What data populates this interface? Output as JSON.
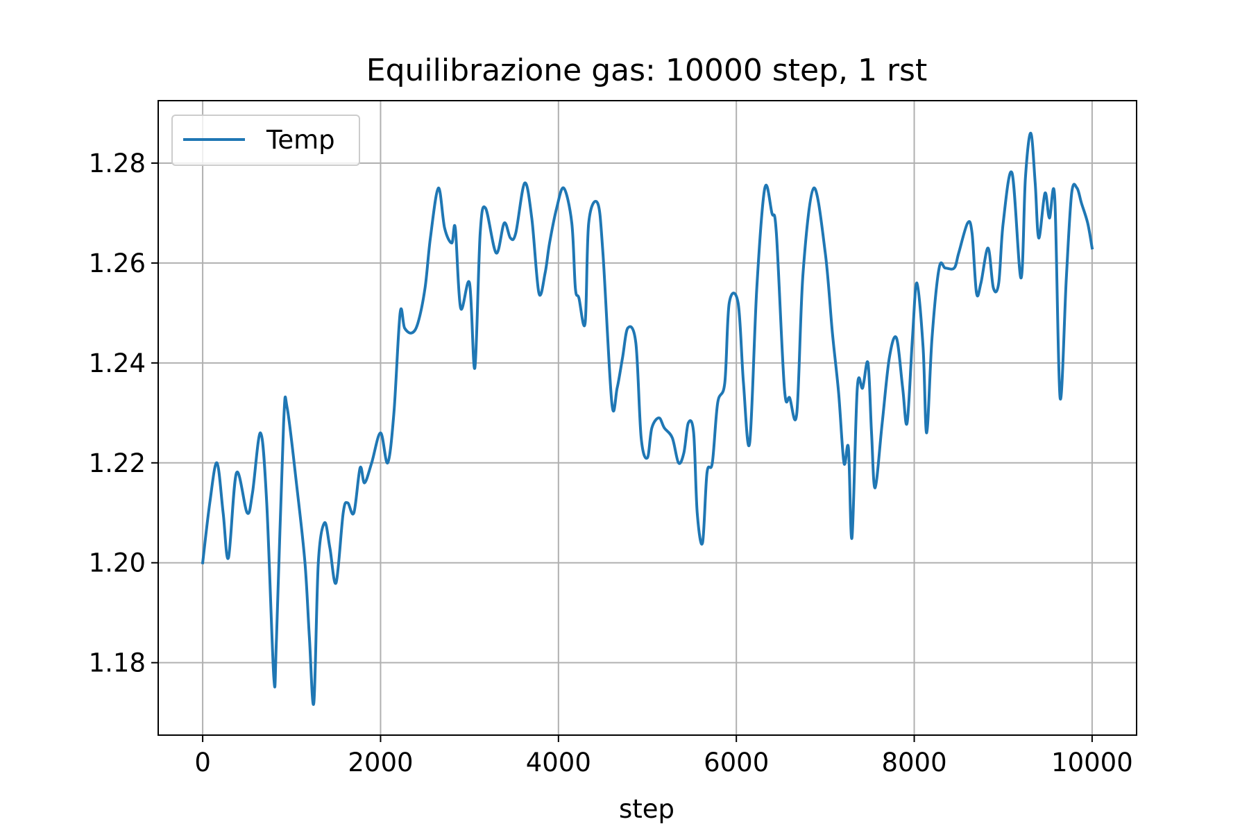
{
  "chart_data": {
    "type": "line",
    "title": "Equilibrazione gas: 10000 step, 1 rst",
    "xlabel": "step",
    "ylabel": "",
    "xlim": [
      -500,
      10500
    ],
    "ylim": [
      1.1655,
      1.2925
    ],
    "xticks": [
      0,
      2000,
      4000,
      6000,
      8000,
      10000
    ],
    "xtick_labels": [
      "0",
      "2000",
      "4000",
      "6000",
      "8000",
      "10000"
    ],
    "yticks": [
      1.18,
      1.2,
      1.22,
      1.24,
      1.26,
      1.28
    ],
    "ytick_labels": [
      "1.18",
      "1.20",
      "1.22",
      "1.24",
      "1.26",
      "1.28"
    ],
    "grid": true,
    "legend": {
      "position": "upper-left",
      "entries": [
        "Temp"
      ]
    },
    "colors": {
      "series": "#1f77b4",
      "grid": "#b0b0b0"
    },
    "series": [
      {
        "name": "Temp",
        "x": [
          0,
          80,
          160,
          230,
          290,
          380,
          500,
          560,
          650,
          720,
          800,
          830,
          910,
          950,
          1060,
          1150,
          1200,
          1250,
          1300,
          1370,
          1430,
          1500,
          1580,
          1630,
          1700,
          1770,
          1820,
          1900,
          2000,
          2080,
          2150,
          2220,
          2270,
          2350,
          2420,
          2500,
          2560,
          2650,
          2720,
          2800,
          2840,
          2900,
          3000,
          3060,
          3120,
          3180,
          3300,
          3390,
          3460,
          3520,
          3620,
          3700,
          3780,
          3850,
          3900,
          3980,
          4060,
          4150,
          4190,
          4230,
          4300,
          4340,
          4440,
          4500,
          4600,
          4660,
          4720,
          4780,
          4870,
          4930,
          5000,
          5050,
          5130,
          5190,
          5280,
          5350,
          5410,
          5460,
          5520,
          5560,
          5620,
          5670,
          5730,
          5790,
          5870,
          5920,
          6020,
          6080,
          6150,
          6230,
          6320,
          6400,
          6450,
          6540,
          6600,
          6680,
          6750,
          6870,
          7000,
          7080,
          7150,
          7210,
          7260,
          7300,
          7360,
          7420,
          7480,
          7520,
          7560,
          7640,
          7720,
          7800,
          7870,
          7920,
          7980,
          8030,
          8100,
          8140,
          8200,
          8280,
          8350,
          8450,
          8500,
          8600,
          8650,
          8700,
          8750,
          8830,
          8890,
          8950,
          9000,
          9100,
          9200,
          9250,
          9310,
          9360,
          9400,
          9470,
          9520,
          9580,
          9640,
          9710,
          9770,
          9830,
          9880,
          9950,
          10000
        ],
        "values": [
          1.2,
          1.212,
          1.22,
          1.21,
          1.201,
          1.218,
          1.21,
          1.214,
          1.226,
          1.212,
          1.177,
          1.185,
          1.228,
          1.231,
          1.215,
          1.2,
          1.185,
          1.172,
          1.2,
          1.208,
          1.203,
          1.196,
          1.21,
          1.212,
          1.21,
          1.219,
          1.216,
          1.22,
          1.226,
          1.22,
          1.23,
          1.25,
          1.247,
          1.246,
          1.248,
          1.255,
          1.265,
          1.275,
          1.267,
          1.264,
          1.267,
          1.251,
          1.256,
          1.239,
          1.266,
          1.271,
          1.262,
          1.268,
          1.265,
          1.266,
          1.276,
          1.269,
          1.254,
          1.258,
          1.264,
          1.271,
          1.275,
          1.268,
          1.255,
          1.253,
          1.248,
          1.268,
          1.272,
          1.262,
          1.232,
          1.235,
          1.241,
          1.247,
          1.244,
          1.225,
          1.221,
          1.227,
          1.229,
          1.227,
          1.225,
          1.22,
          1.222,
          1.228,
          1.226,
          1.21,
          1.204,
          1.218,
          1.22,
          1.232,
          1.236,
          1.252,
          1.252,
          1.236,
          1.224,
          1.255,
          1.275,
          1.27,
          1.266,
          1.235,
          1.233,
          1.23,
          1.258,
          1.275,
          1.262,
          1.246,
          1.234,
          1.22,
          1.223,
          1.205,
          1.235,
          1.235,
          1.24,
          1.226,
          1.215,
          1.228,
          1.241,
          1.245,
          1.235,
          1.228,
          1.245,
          1.256,
          1.243,
          1.226,
          1.245,
          1.259,
          1.259,
          1.259,
          1.262,
          1.268,
          1.266,
          1.254,
          1.256,
          1.263,
          1.255,
          1.256,
          1.268,
          1.278,
          1.257,
          1.277,
          1.286,
          1.276,
          1.265,
          1.274,
          1.269,
          1.273,
          1.233,
          1.257,
          1.274,
          1.275,
          1.272,
          1.268,
          1.263
        ]
      }
    ]
  }
}
